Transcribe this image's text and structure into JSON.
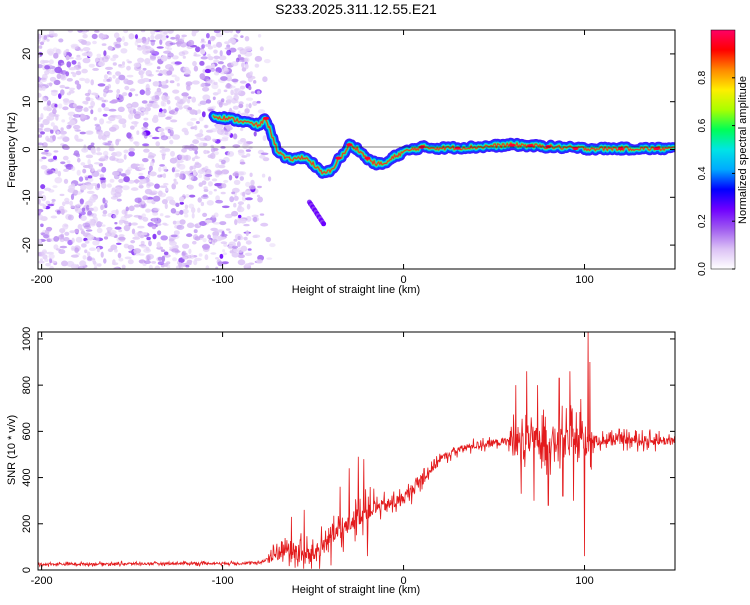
{
  "title": "S233.2025.311.12.55.E21",
  "chart_data": [
    {
      "type": "heatmap",
      "title": "S233.2025.311.12.55.E21",
      "xlabel": "Height of straight line (km)",
      "ylabel": "Frequency (Hz)",
      "xlim": [
        -202,
        150
      ],
      "ylim": [
        -25,
        25
      ],
      "xticks": [
        -200,
        -100,
        0,
        100
      ],
      "yticks": [
        -20,
        -10,
        0,
        10,
        20
      ],
      "colorbar": {
        "label": "Normalized spectral amplitude",
        "range": [
          0,
          1
        ],
        "ticks": [
          "0.0",
          "0.2",
          "0.4",
          "0.6",
          "0.8"
        ],
        "colors": [
          "#ffffff",
          "#dcc2f5",
          "#a05cf0",
          "#6f00ff",
          "#0000ff",
          "#00aaff",
          "#00e5e5",
          "#00ff55",
          "#aaff00",
          "#ffee00",
          "#ff8800",
          "#ff0000",
          "#ff0066"
        ]
      },
      "ridge": {
        "x": [
          -105,
          -90,
          -80,
          -76,
          -70,
          -65,
          -60,
          -55,
          -50,
          -45,
          -40,
          -36,
          -33,
          -30,
          -25,
          -20,
          -15,
          -10,
          -5,
          0,
          5,
          10,
          20,
          40,
          60,
          80,
          100,
          120,
          150
        ],
        "freq": [
          7,
          6,
          5,
          6.5,
          0,
          -2,
          -2,
          -1.5,
          -3,
          -5,
          -4.5,
          -2,
          -1,
          1,
          0,
          -2,
          -3,
          -3,
          -1.5,
          -0.5,
          0,
          0.5,
          0.3,
          0.5,
          1,
          0.6,
          0.2,
          0.2,
          0.2
        ]
      },
      "noise_region_x": [
        -202,
        -72
      ]
    },
    {
      "type": "line",
      "xlabel": "Height of straight line (km)",
      "ylabel": "SNR (10 * v/v)",
      "xlim": [
        -202,
        150
      ],
      "ylim": [
        0,
        1030
      ],
      "xticks": [
        -200,
        -100,
        0,
        100
      ],
      "yticks": [
        0,
        200,
        400,
        600,
        800,
        1000
      ],
      "color": "#e31a1c",
      "trend": {
        "x": [
          -202,
          -80,
          -72,
          -66,
          -60,
          -55,
          -50,
          -45,
          -40,
          -35,
          -30,
          -25,
          -20,
          -15,
          -10,
          -5,
          0,
          5,
          10,
          15,
          20,
          25,
          30,
          35,
          40,
          45,
          50,
          55,
          60,
          70,
          80,
          90,
          100,
          110,
          120,
          130,
          150
        ],
        "y": [
          25,
          30,
          60,
          100,
          80,
          60,
          70,
          100,
          160,
          150,
          200,
          230,
          260,
          270,
          280,
          290,
          310,
          350,
          390,
          440,
          480,
          500,
          520,
          530,
          540,
          545,
          550,
          555,
          560,
          560,
          555,
          560,
          560,
          560,
          565,
          560,
          560
        ]
      },
      "spikes": {
        "x": [
          -62,
          -55,
          -35,
          -30,
          -25,
          -22,
          -20,
          62,
          68,
          74,
          80,
          86,
          92,
          98,
          102,
          103
        ],
        "y": [
          230,
          260,
          360,
          440,
          490,
          480,
          400,
          800,
          860,
          800,
          760,
          830,
          860,
          740,
          1040,
          900
        ]
      },
      "dips": {
        "x": [
          -60,
          -40,
          -20,
          65,
          72,
          80,
          88,
          94,
          100
        ],
        "y": [
          10,
          20,
          60,
          330,
          300,
          280,
          320,
          300,
          60
        ]
      }
    }
  ]
}
